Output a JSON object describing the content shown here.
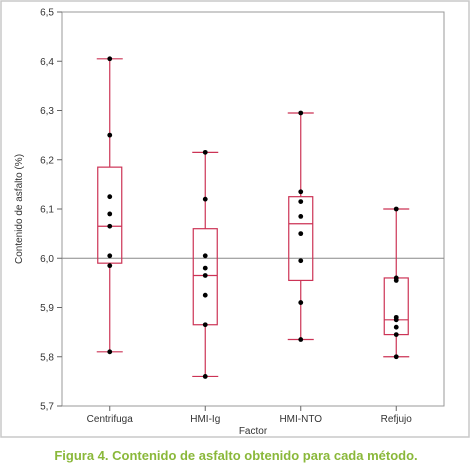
{
  "chart_data": {
    "type": "boxplot",
    "title": "",
    "xlabel": "Factor",
    "ylabel": "Contenido de asfalto (%)",
    "ylim": [
      5.7,
      6.5
    ],
    "yticks": [
      "5,7",
      "5,8",
      "5,9",
      "6,0",
      "6,1",
      "6,2",
      "6,3",
      "6,4",
      "6,5"
    ],
    "reference_line": 6.0,
    "grid": false,
    "categories": [
      "Centrifuga",
      "HMI-Ig",
      "HMI-NTO",
      "Refjujo"
    ],
    "boxes": [
      {
        "min": 5.81,
        "q1": 5.99,
        "median": 6.065,
        "q3": 6.185,
        "max": 6.405,
        "points": [
          6.405,
          6.25,
          6.125,
          6.09,
          6.065,
          6.005,
          5.985,
          5.81
        ]
      },
      {
        "min": 5.76,
        "q1": 5.865,
        "median": 5.965,
        "q3": 6.06,
        "max": 6.215,
        "points": [
          6.215,
          6.12,
          6.005,
          5.98,
          5.965,
          5.925,
          5.865,
          5.76
        ]
      },
      {
        "min": 5.835,
        "q1": 5.955,
        "median": 6.07,
        "q3": 6.125,
        "max": 6.295,
        "points": [
          6.295,
          6.135,
          6.115,
          6.085,
          6.05,
          5.995,
          5.91,
          5.835
        ]
      },
      {
        "min": 5.8,
        "q1": 5.845,
        "median": 5.875,
        "q3": 5.96,
        "max": 6.1,
        "points": [
          6.1,
          5.96,
          5.955,
          5.88,
          5.875,
          5.86,
          5.845,
          5.8
        ]
      }
    ],
    "colors": {
      "box": "#cc3355",
      "points": "#000000",
      "reference": "#888888",
      "frame": "#c8c8c8"
    }
  },
  "caption": "Figura 4. Contenido de asfalto obtenido para cada método."
}
